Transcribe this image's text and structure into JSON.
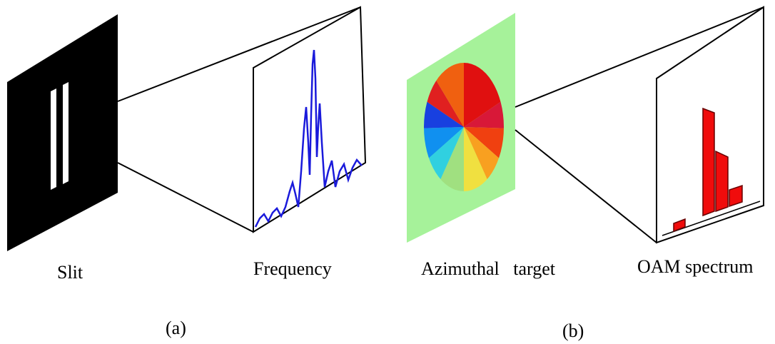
{
  "labels": {
    "slit": "Slit",
    "frequency": "Frequency",
    "azimuthal": "Azimuthal   target",
    "oam": "OAM spectrum"
  },
  "panels": {
    "a": "(a)",
    "b": "(b)"
  }
}
